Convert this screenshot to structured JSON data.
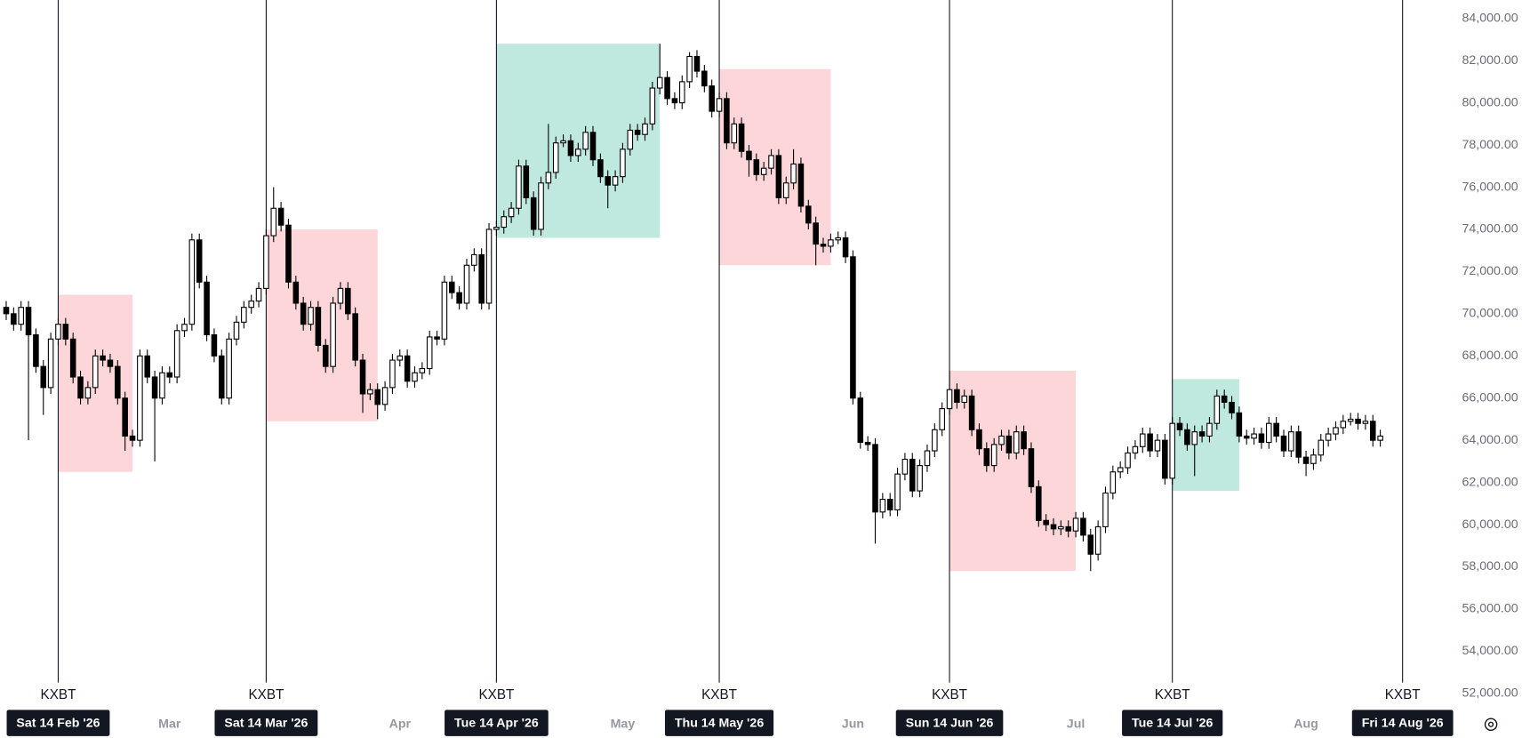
{
  "chart_data": {
    "type": "candlestick",
    "vline_label": "KXBT",
    "grid": false,
    "up_color": "#ffffff",
    "down_color": "#000000",
    "wick_color": "#000000",
    "ylim": [
      49884,
      84875
    ],
    "yticks": [
      {
        "value": 52000,
        "label": "52,000.00"
      },
      {
        "value": 54000,
        "label": "54,000.00"
      },
      {
        "value": 56000,
        "label": "56,000.00"
      },
      {
        "value": 58000,
        "label": "58,000.00"
      },
      {
        "value": 60000,
        "label": "60,000.00"
      },
      {
        "value": 62000,
        "label": "62,000.00"
      },
      {
        "value": 64000,
        "label": "64,000.00"
      },
      {
        "value": 66000,
        "label": "66,000.00"
      },
      {
        "value": 68000,
        "label": "68,000.00"
      },
      {
        "value": 70000,
        "label": "70,000.00"
      },
      {
        "value": 72000,
        "label": "72,000.00"
      },
      {
        "value": 74000,
        "label": "74,000.00"
      },
      {
        "value": 76000,
        "label": "76,000.00"
      },
      {
        "value": 78000,
        "label": "78,000.00"
      },
      {
        "value": 80000,
        "label": "80,000.00"
      },
      {
        "value": 82000,
        "label": "82,000.00"
      },
      {
        "value": 84000,
        "label": "84,000.00"
      }
    ],
    "categories": [
      null,
      null,
      null,
      null,
      null,
      null,
      null,
      "Sat 14 Feb '26",
      null,
      null,
      null,
      null,
      null,
      null,
      null,
      null,
      null,
      null,
      null,
      null,
      null,
      null,
      "Mar",
      null,
      null,
      null,
      null,
      null,
      null,
      null,
      null,
      null,
      null,
      null,
      null,
      "Sat 14 Mar '26",
      null,
      null,
      null,
      null,
      null,
      null,
      null,
      null,
      null,
      null,
      null,
      null,
      null,
      null,
      null,
      null,
      null,
      "Apr",
      null,
      null,
      null,
      null,
      null,
      null,
      null,
      null,
      null,
      null,
      null,
      null,
      "Tue 14 Apr '26",
      null,
      null,
      null,
      null,
      null,
      null,
      null,
      null,
      null,
      null,
      null,
      null,
      null,
      null,
      null,
      null,
      "May",
      null,
      null,
      null,
      null,
      null,
      null,
      null,
      null,
      null,
      null,
      null,
      null,
      "Thu 14 May '26",
      null,
      null,
      null,
      null,
      null,
      null,
      null,
      null,
      null,
      null,
      null,
      null,
      null,
      null,
      null,
      null,
      null,
      "Jun",
      null,
      null,
      null,
      null,
      null,
      null,
      null,
      null,
      null,
      null,
      null,
      null,
      "Sun 14 Jun '26",
      null,
      null,
      null,
      null,
      null,
      null,
      null,
      null,
      null,
      null,
      null,
      null,
      null,
      null,
      null,
      null,
      "Jul",
      null,
      null,
      null,
      null,
      null,
      null,
      null,
      null,
      null,
      null,
      null,
      null,
      "Tue 14 Jul '26",
      null,
      null,
      null,
      null,
      null,
      null,
      null,
      null,
      null,
      null,
      null,
      null,
      null,
      null,
      null,
      null,
      null,
      "Aug",
      null,
      null,
      null,
      null,
      null,
      null,
      null,
      null,
      null,
      null,
      null,
      null,
      "Fri 14 Aug '26"
    ],
    "ohlc": [
      [
        70300,
        70600,
        69700,
        70000
      ],
      [
        70000,
        70300,
        69200,
        69500
      ],
      [
        69500,
        70600,
        69200,
        70300
      ],
      [
        70300,
        70600,
        64000,
        69000
      ],
      [
        69000,
        69300,
        67200,
        67500
      ],
      [
        67500,
        67800,
        65200,
        66500
      ],
      [
        66500,
        69100,
        66200,
        68800
      ],
      [
        68800,
        69800,
        68500,
        69500
      ],
      [
        69500,
        69800,
        68500,
        68800
      ],
      [
        68800,
        69100,
        66700,
        67000
      ],
      [
        67000,
        67300,
        65700,
        66000
      ],
      [
        66000,
        66800,
        65700,
        66500
      ],
      [
        66500,
        68300,
        66200,
        68000
      ],
      [
        68000,
        68300,
        67500,
        67800
      ],
      [
        67800,
        68100,
        67200,
        67500
      ],
      [
        67500,
        67800,
        65700,
        66000
      ],
      [
        66000,
        66300,
        63500,
        64200
      ],
      [
        64200,
        64500,
        63700,
        64000
      ],
      [
        64000,
        68300,
        63700,
        68000
      ],
      [
        68000,
        68300,
        66700,
        67000
      ],
      [
        67000,
        67300,
        63000,
        66000
      ],
      [
        66000,
        67500,
        65700,
        67200
      ],
      [
        67200,
        67500,
        66700,
        67000
      ],
      [
        67000,
        69500,
        66700,
        69200
      ],
      [
        69200,
        69800,
        68900,
        69500
      ],
      [
        69500,
        73800,
        69200,
        73500
      ],
      [
        73500,
        73800,
        71200,
        71500
      ],
      [
        71500,
        71800,
        68700,
        69000
      ],
      [
        69000,
        69300,
        67700,
        68000
      ],
      [
        68000,
        68300,
        65700,
        66000
      ],
      [
        66000,
        69100,
        65700,
        68800
      ],
      [
        68800,
        69900,
        68500,
        69600
      ],
      [
        69600,
        70600,
        69300,
        70300
      ],
      [
        70300,
        70900,
        70000,
        70600
      ],
      [
        70600,
        71500,
        70300,
        71200
      ],
      [
        71200,
        74000,
        70900,
        73700
      ],
      [
        73700,
        76000,
        73400,
        75000
      ],
      [
        75000,
        75300,
        73900,
        74200
      ],
      [
        74200,
        74500,
        71200,
        71500
      ],
      [
        71500,
        71800,
        70200,
        70500
      ],
      [
        70500,
        70800,
        69200,
        69500
      ],
      [
        69500,
        70600,
        69200,
        70300
      ],
      [
        70300,
        70600,
        68200,
        68500
      ],
      [
        68500,
        68800,
        67200,
        67500
      ],
      [
        67500,
        70800,
        67200,
        70500
      ],
      [
        70500,
        71500,
        70200,
        71200
      ],
      [
        71200,
        71500,
        69700,
        70000
      ],
      [
        70000,
        70300,
        67500,
        67800
      ],
      [
        67800,
        68100,
        65300,
        66200
      ],
      [
        66200,
        66700,
        65900,
        66400
      ],
      [
        66400,
        66700,
        65000,
        65700
      ],
      [
        65700,
        66800,
        65400,
        66500
      ],
      [
        66500,
        68100,
        66200,
        67800
      ],
      [
        67800,
        68300,
        67500,
        68000
      ],
      [
        68000,
        68300,
        66500,
        66800
      ],
      [
        66800,
        67500,
        66500,
        67200
      ],
      [
        67200,
        67700,
        66900,
        67400
      ],
      [
        67400,
        69200,
        67100,
        68900
      ],
      [
        68900,
        69200,
        68500,
        68800
      ],
      [
        68800,
        71800,
        68500,
        71500
      ],
      [
        71500,
        71800,
        70700,
        71000
      ],
      [
        71000,
        71300,
        70200,
        70500
      ],
      [
        70500,
        72600,
        70200,
        72300
      ],
      [
        72300,
        73100,
        72000,
        72800
      ],
      [
        72800,
        73100,
        70200,
        70500
      ],
      [
        70500,
        74300,
        70200,
        74000
      ],
      [
        74000,
        74400,
        73700,
        74100
      ],
      [
        74100,
        74900,
        73800,
        74600
      ],
      [
        74600,
        75300,
        74300,
        75000
      ],
      [
        75000,
        77300,
        74700,
        77000
      ],
      [
        77000,
        77300,
        75200,
        75500
      ],
      [
        75500,
        75800,
        73700,
        74000
      ],
      [
        74000,
        76500,
        73700,
        76200
      ],
      [
        76200,
        79000,
        75900,
        76700
      ],
      [
        76700,
        78400,
        76400,
        78100
      ],
      [
        78100,
        78500,
        77900,
        78200
      ],
      [
        78200,
        78500,
        77200,
        77500
      ],
      [
        77500,
        78100,
        77200,
        77800
      ],
      [
        77800,
        78900,
        77500,
        78600
      ],
      [
        78600,
        78900,
        77000,
        77300
      ],
      [
        77300,
        77600,
        76200,
        76500
      ],
      [
        76500,
        76800,
        75000,
        76100
      ],
      [
        76100,
        76800,
        75800,
        76500
      ],
      [
        76500,
        78100,
        76200,
        77800
      ],
      [
        77800,
        79000,
        77500,
        78700
      ],
      [
        78700,
        79000,
        78200,
        78500
      ],
      [
        78500,
        79300,
        78200,
        79000
      ],
      [
        79000,
        81000,
        78700,
        80700
      ],
      [
        80700,
        82800,
        80400,
        81200
      ],
      [
        81200,
        81500,
        79900,
        80200
      ],
      [
        80200,
        80500,
        79700,
        80000
      ],
      [
        80000,
        81300,
        79700,
        81000
      ],
      [
        81000,
        82400,
        80700,
        82200
      ],
      [
        82200,
        82500,
        81200,
        81500
      ],
      [
        81500,
        81800,
        80500,
        80800
      ],
      [
        80800,
        81100,
        79300,
        79600
      ],
      [
        79600,
        80500,
        79300,
        80200
      ],
      [
        80200,
        80500,
        77800,
        78100
      ],
      [
        78100,
        79300,
        77800,
        79000
      ],
      [
        79000,
        79300,
        77400,
        77700
      ],
      [
        77700,
        78000,
        76500,
        77300
      ],
      [
        77300,
        77600,
        76300,
        76600
      ],
      [
        76600,
        77200,
        76300,
        76900
      ],
      [
        76900,
        77800,
        76600,
        77500
      ],
      [
        77500,
        77800,
        75200,
        75500
      ],
      [
        75500,
        76500,
        75200,
        76200
      ],
      [
        76200,
        77800,
        75900,
        77100
      ],
      [
        77100,
        77400,
        74800,
        75100
      ],
      [
        75100,
        75400,
        74000,
        74300
      ],
      [
        74300,
        74600,
        72300,
        73300
      ],
      [
        73300,
        73600,
        72900,
        73200
      ],
      [
        73200,
        73800,
        72900,
        73500
      ],
      [
        73500,
        73900,
        73300,
        73600
      ],
      [
        73600,
        73900,
        72400,
        72700
      ],
      [
        72700,
        73000,
        65700,
        66000
      ],
      [
        66000,
        66300,
        63600,
        63900
      ],
      [
        63900,
        64200,
        63500,
        63800
      ],
      [
        63800,
        64100,
        59100,
        60600
      ],
      [
        60600,
        61500,
        60300,
        61200
      ],
      [
        61200,
        61500,
        60400,
        60700
      ],
      [
        60700,
        62700,
        60400,
        62400
      ],
      [
        62400,
        63400,
        62100,
        63100
      ],
      [
        63100,
        63400,
        61300,
        61600
      ],
      [
        61600,
        63100,
        61300,
        62800
      ],
      [
        62800,
        63800,
        62500,
        63500
      ],
      [
        63500,
        64800,
        63200,
        64500
      ],
      [
        64500,
        65800,
        64200,
        65500
      ],
      [
        65500,
        67300,
        65200,
        66400
      ],
      [
        66400,
        66700,
        65500,
        65800
      ],
      [
        65800,
        66400,
        65500,
        66100
      ],
      [
        66100,
        66400,
        64200,
        64500
      ],
      [
        64500,
        64800,
        63300,
        63600
      ],
      [
        63600,
        63900,
        62500,
        62800
      ],
      [
        62800,
        64100,
        62500,
        63800
      ],
      [
        63800,
        64500,
        63500,
        64200
      ],
      [
        64200,
        64500,
        63100,
        63400
      ],
      [
        63400,
        64700,
        63100,
        64400
      ],
      [
        64400,
        64700,
        63300,
        63600
      ],
      [
        63600,
        63900,
        61500,
        61800
      ],
      [
        61800,
        62100,
        59900,
        60200
      ],
      [
        60200,
        60500,
        59700,
        60000
      ],
      [
        60000,
        60300,
        59500,
        59800
      ],
      [
        59800,
        60200,
        59500,
        59900
      ],
      [
        59900,
        60200,
        59400,
        59700
      ],
      [
        59700,
        60600,
        59400,
        60300
      ],
      [
        60300,
        60600,
        59200,
        59500
      ],
      [
        59500,
        59800,
        57800,
        58600
      ],
      [
        58600,
        60200,
        58300,
        59900
      ],
      [
        59900,
        61800,
        59600,
        61500
      ],
      [
        61500,
        62800,
        61200,
        62500
      ],
      [
        62500,
        63000,
        62200,
        62700
      ],
      [
        62700,
        63700,
        62400,
        63400
      ],
      [
        63400,
        64000,
        63100,
        63700
      ],
      [
        63700,
        64600,
        63400,
        64300
      ],
      [
        64300,
        64600,
        63200,
        63500
      ],
      [
        63500,
        64300,
        63200,
        64000
      ],
      [
        64000,
        64300,
        61900,
        62200
      ],
      [
        62200,
        65100,
        61900,
        64800
      ],
      [
        64800,
        65100,
        64200,
        64500
      ],
      [
        64500,
        64800,
        63500,
        63800
      ],
      [
        63800,
        64700,
        62300,
        64400
      ],
      [
        64400,
        64700,
        63900,
        64200
      ],
      [
        64200,
        65100,
        63900,
        64800
      ],
      [
        64800,
        66400,
        64500,
        66100
      ],
      [
        66100,
        66400,
        65500,
        65800
      ],
      [
        65800,
        66100,
        65000,
        65300
      ],
      [
        65300,
        65600,
        63900,
        64200
      ],
      [
        64200,
        64500,
        63800,
        64100
      ],
      [
        64100,
        64600,
        63800,
        64300
      ],
      [
        64300,
        64600,
        63600,
        63900
      ],
      [
        63900,
        65100,
        63600,
        64800
      ],
      [
        64800,
        65100,
        63900,
        64200
      ],
      [
        64200,
        64500,
        63200,
        63500
      ],
      [
        63500,
        64700,
        63200,
        64400
      ],
      [
        64400,
        64700,
        62900,
        63200
      ],
      [
        63200,
        63500,
        62300,
        62900
      ],
      [
        62900,
        63600,
        62600,
        63300
      ],
      [
        63300,
        64300,
        63000,
        64000
      ],
      [
        64000,
        64600,
        63700,
        64300
      ],
      [
        64300,
        64900,
        64000,
        64600
      ],
      [
        64600,
        65200,
        64300,
        64900
      ],
      [
        64900,
        65300,
        64700,
        65000
      ],
      [
        65000,
        65300,
        64500,
        64800
      ],
      [
        64800,
        65200,
        64500,
        64900
      ],
      [
        64900,
        65200,
        63700,
        64000
      ],
      [
        64000,
        64500,
        63700,
        64200
      ],
      null,
      null,
      null
    ],
    "zones": [
      {
        "from": "Sat 14 Feb '26",
        "days": 10,
        "low": 62500,
        "high": 70900,
        "color": "#fcd6d9"
      },
      {
        "from": "Sat 14 Mar '26",
        "days": 15,
        "low": 64900,
        "high": 74000,
        "color": "#fcd6d9"
      },
      {
        "from": "Tue 14 Apr '26",
        "days": 22,
        "low": 73600,
        "high": 82800,
        "color": "#bfe8df"
      },
      {
        "from": "Thu 14 May '26",
        "days": 15,
        "low": 72300,
        "high": 81600,
        "color": "#fcd6d9"
      },
      {
        "from": "Sun 14 Jun '26",
        "days": 17,
        "low": 57800,
        "high": 67300,
        "color": "#fcd6d9"
      },
      {
        "from": "Tue 14 Jul '26",
        "days": 9,
        "low": 61600,
        "high": 66900,
        "color": "#bfe8df"
      }
    ]
  }
}
